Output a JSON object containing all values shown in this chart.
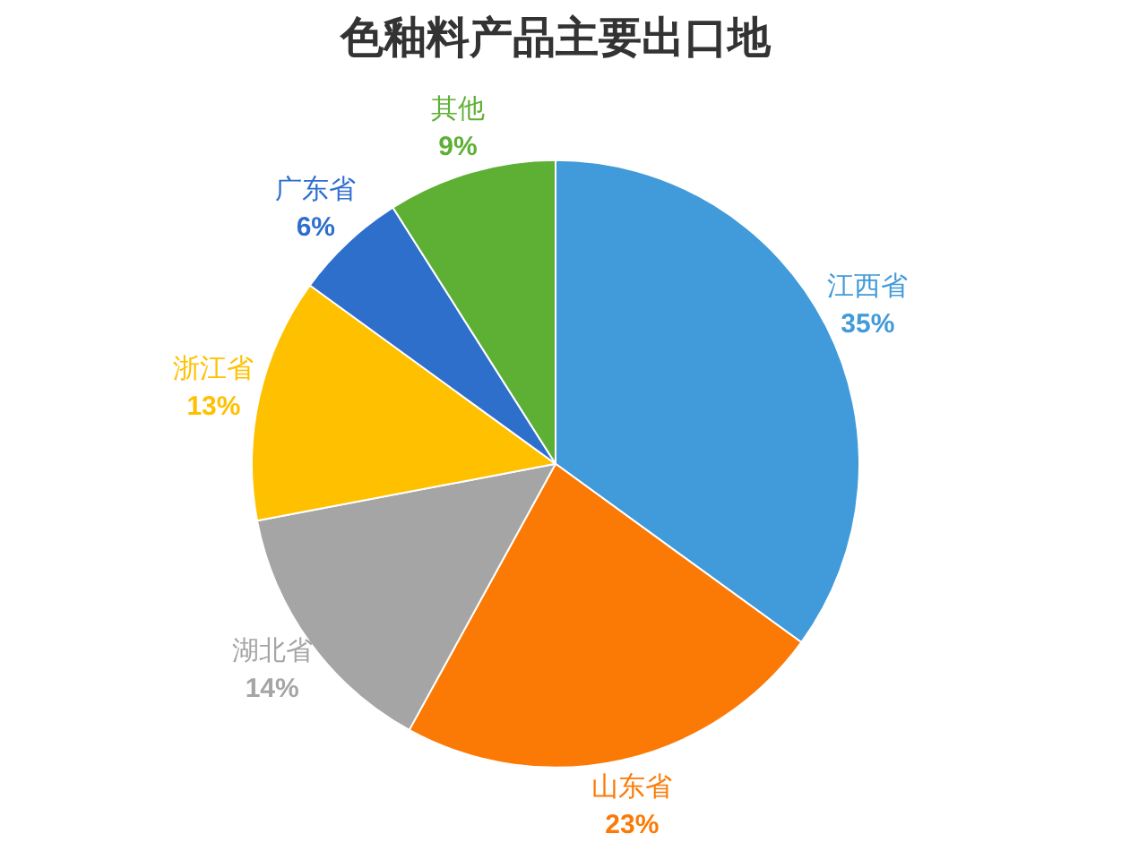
{
  "chart_data": {
    "type": "pie",
    "title": "色釉料产品主要出口地",
    "categories": [
      "江西省",
      "山东省",
      "湖北省",
      "浙江省",
      "广东省",
      "其他"
    ],
    "values": [
      35,
      23,
      14,
      13,
      6,
      9
    ],
    "value_labels": [
      "35%",
      "23%",
      "14%",
      "13%",
      "6%",
      "9%"
    ],
    "colors": [
      "#419ad9",
      "#fb7a06",
      "#a5a5a5",
      "#ffc000",
      "#2f6fcc",
      "#5eb035"
    ],
    "legend": false
  }
}
